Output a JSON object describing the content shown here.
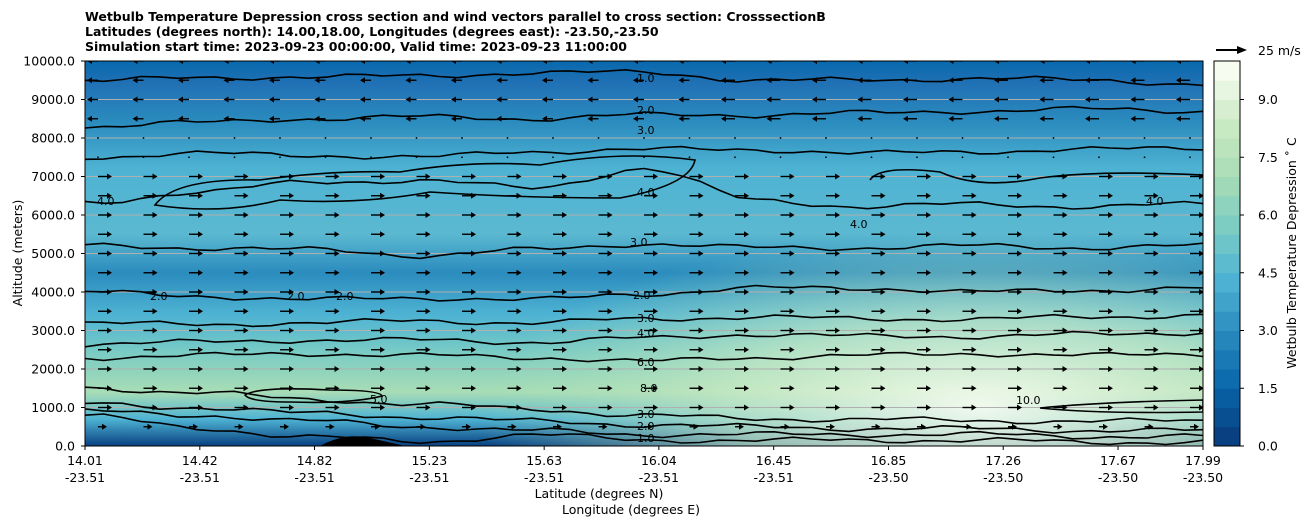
{
  "title_lines": [
    "Wetbulb Temperature Depression cross section and wind vectors parallel to cross section: CrosssectionB",
    "Latitudes (degrees north): 14.00,18.00, Longitudes (degrees east): -23.50,-23.50",
    "Simulation start time: 2023-09-23 00:00:00, Valid time: 2023-09-23 11:00:00"
  ],
  "chart_data": {
    "type": "contour cross section with wind vectors",
    "title": "Wetbulb Temperature Depression cross section and wind vectors parallel to cross section: CrosssectionB",
    "xlabel_lat": "Latitude (degrees N)",
    "xlabel_lon": "Longitude (degrees E)",
    "ylabel": "Altitude (meters)",
    "ylim": [
      0,
      10000
    ],
    "yticks": [
      "0.0",
      "1000.0",
      "2000.0",
      "3000.0",
      "4000.0",
      "5000.0",
      "6000.0",
      "7000.0",
      "8000.0",
      "9000.0",
      "10000.0"
    ],
    "ytick_values": [
      0,
      1000,
      2000,
      3000,
      4000,
      5000,
      6000,
      7000,
      8000,
      9000,
      10000
    ],
    "xticks": [
      {
        "lat": "14.01",
        "lon": "-23.51"
      },
      {
        "lat": "14.42",
        "lon": "-23.51"
      },
      {
        "lat": "14.82",
        "lon": "-23.51"
      },
      {
        "lat": "15.23",
        "lon": "-23.51"
      },
      {
        "lat": "15.63",
        "lon": "-23.51"
      },
      {
        "lat": "16.04",
        "lon": "-23.51"
      },
      {
        "lat": "16.45",
        "lon": "-23.51"
      },
      {
        "lat": "16.85",
        "lon": "-23.50"
      },
      {
        "lat": "17.26",
        "lon": "-23.50"
      },
      {
        "lat": "17.67",
        "lon": "-23.50"
      },
      {
        "lat": "17.99",
        "lon": "-23.50"
      }
    ],
    "xtick_positions": [
      0,
      0.1027,
      0.2053,
      0.308,
      0.4107,
      0.5133,
      0.616,
      0.7187,
      0.8213,
      0.924,
      1.0
    ],
    "colorbar": {
      "label": "Wetbulb Temperature Depression $^\\circ$C",
      "label_display": "Wetbulb Temperature Depression ˚ C",
      "range": [
        0,
        10
      ],
      "ticks": [
        "0.0",
        "1.5",
        "3.0",
        "4.5",
        "6.0",
        "7.5",
        "9.0"
      ],
      "tick_values": [
        0,
        1.5,
        3.0,
        4.5,
        6.0,
        7.5,
        9.0
      ],
      "colors": [
        "#084081",
        "#0868ac",
        "#2b8cbe",
        "#4eb3d3",
        "#7bccc4",
        "#a8ddb5",
        "#ccebc5",
        "#f7fcf0"
      ]
    },
    "wind_key": {
      "label": "25 m/s",
      "speed": 25
    },
    "contour_labels": [
      "1.0",
      "2.0",
      "3.0",
      "4.0",
      "5.0",
      "6.0",
      "8.0",
      "10.0"
    ],
    "contour_profiles": [
      {
        "level": 1.0,
        "z": [
          800,
          450,
          250,
          100,
          300,
          150,
          150,
          150,
          150,
          100,
          100
        ]
      },
      {
        "level": 2.0,
        "z": [
          900,
          800,
          650,
          500,
          400,
          300,
          300,
          300,
          300,
          250,
          250
        ]
      },
      {
        "level": 3.0,
        "z": [
          1100,
          1000,
          850,
          750,
          650,
          550,
          500,
          450,
          450,
          400,
          400
        ]
      },
      {
        "level": 5.0,
        "z": [
          1500,
          1400,
          1200,
          1100,
          950,
          800,
          700,
          700,
          650,
          650,
          650
        ]
      },
      {
        "level": 6.0,
        "z": [
          2300,
          2350,
          2400,
          2350,
          2300,
          2200,
          2300,
          2350,
          2400,
          2350,
          2400
        ]
      },
      {
        "level": 4.0,
        "z": [
          2650,
          2700,
          2750,
          2750,
          2700,
          2800,
          2900,
          2850,
          2850,
          2900,
          2950
        ]
      },
      {
        "level": 3.0,
        "z": [
          3200,
          3150,
          3200,
          3250,
          3200,
          3300,
          3350,
          3300,
          3300,
          3350,
          3400
        ]
      },
      {
        "level": 2.0,
        "z": [
          4000,
          3900,
          3800,
          3850,
          3800,
          3950,
          4100,
          4100,
          4000,
          4050,
          4100
        ]
      },
      {
        "level": 3.0,
        "z": [
          5200,
          5150,
          5100,
          4950,
          5100,
          5250,
          5150,
          5150,
          5200,
          5150,
          5200
        ]
      },
      {
        "level": 4.0,
        "z": [
          6300,
          6600,
          6850,
          6900,
          6700,
          7200,
          6400,
          6200,
          6300,
          6200,
          6300
        ]
      },
      {
        "level": 3.0,
        "z": [
          7500,
          7600,
          7550,
          7500,
          7650,
          7700,
          7700,
          7600,
          7650,
          7700,
          7750
        ]
      },
      {
        "level": 2.0,
        "z": [
          8300,
          8400,
          8500,
          8550,
          8500,
          8600,
          8600,
          8650,
          8700,
          8750,
          8700
        ]
      },
      {
        "level": 1.0,
        "z": [
          9500,
          9550,
          9600,
          9600,
          9700,
          9700,
          9500,
          9500,
          9550,
          9500,
          9400
        ]
      }
    ]
  }
}
